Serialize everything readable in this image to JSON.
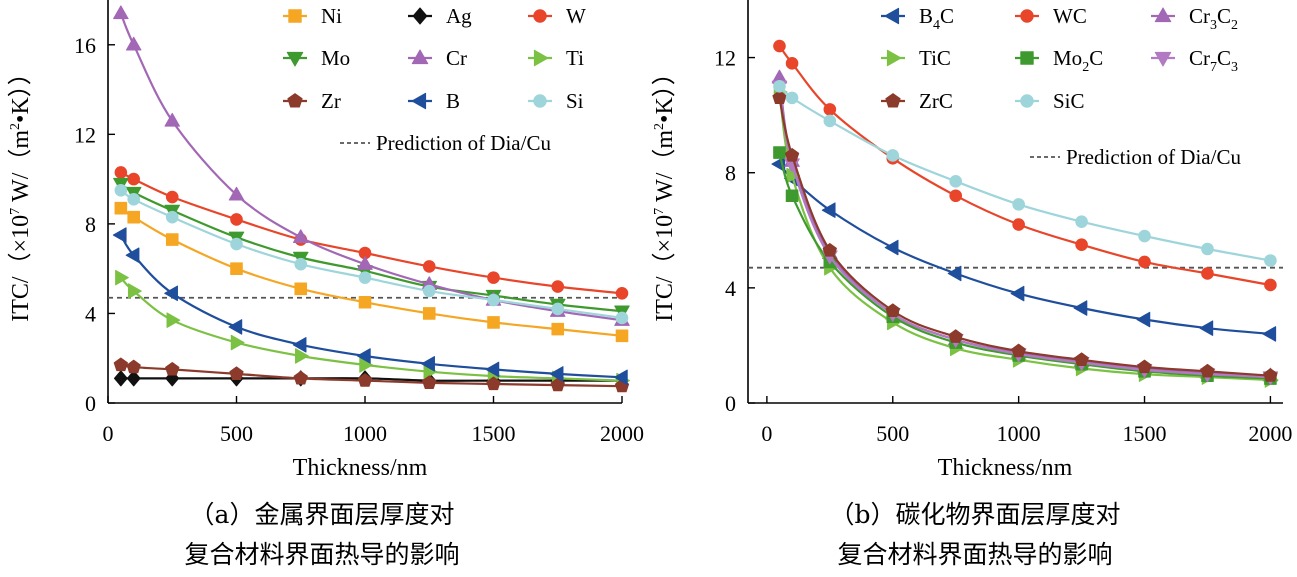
{
  "chart_data": [
    {
      "id": "a",
      "type": "line",
      "xlabel": "Thickness/nm",
      "ylabel_main": "ITC/（×10",
      "ylabel_exp": "7",
      "ylabel_rest": " W/（m",
      "ylabel_sq": "2",
      "ylabel_end": "•K））",
      "xlim": [
        0,
        2000
      ],
      "ylim": [
        0,
        18
      ],
      "xticks": [
        "0",
        "500",
        "1000",
        "1500",
        "2000"
      ],
      "yticks": [
        "0",
        "4",
        "8",
        "12",
        "16"
      ],
      "caption_line1": "（a）金属界面层厚度对",
      "caption_line2": "复合材料界面热导的影响",
      "reference": {
        "label": "Prediction of Dia/Cu",
        "y": 4.7
      },
      "x": [
        50,
        100,
        250,
        500,
        750,
        1000,
        1250,
        1500,
        1750,
        2000
      ],
      "series": [
        {
          "name": "Ni",
          "color": "#F5A623",
          "marker": "square",
          "values": [
            8.7,
            8.3,
            7.3,
            6.0,
            5.1,
            4.5,
            4.0,
            3.6,
            3.3,
            3.0
          ]
        },
        {
          "name": "Ag",
          "color": "#111111",
          "marker": "diamond",
          "values": [
            1.1,
            1.1,
            1.1,
            1.1,
            1.1,
            1.1,
            1.0,
            1.0,
            1.0,
            1.0
          ]
        },
        {
          "name": "W",
          "color": "#E8452A",
          "marker": "circle",
          "values": [
            10.3,
            10.0,
            9.2,
            8.2,
            7.3,
            6.7,
            6.1,
            5.6,
            5.2,
            4.9
          ]
        },
        {
          "name": "Mo",
          "color": "#3E9A2E",
          "marker": "tri-down",
          "values": [
            9.8,
            9.4,
            8.6,
            7.4,
            6.5,
            5.9,
            5.2,
            4.8,
            4.4,
            4.1
          ]
        },
        {
          "name": "Cr",
          "color": "#A267B5",
          "marker": "tri-up",
          "values": [
            17.4,
            16.0,
            12.6,
            9.3,
            7.4,
            6.2,
            5.3,
            4.6,
            4.1,
            3.7
          ]
        },
        {
          "name": "Ti",
          "color": "#7BC143",
          "marker": "tri-right",
          "values": [
            5.6,
            5.0,
            3.7,
            2.7,
            2.1,
            1.7,
            1.4,
            1.2,
            1.1,
            1.0
          ]
        },
        {
          "name": "Zr",
          "color": "#8B3A2B",
          "marker": "pentagon",
          "values": [
            1.7,
            1.6,
            1.5,
            1.3,
            1.1,
            1.0,
            0.9,
            0.85,
            0.8,
            0.75
          ]
        },
        {
          "name": "B",
          "color": "#1F4E9C",
          "marker": "tri-left",
          "values": [
            7.5,
            6.6,
            4.9,
            3.4,
            2.6,
            2.1,
            1.75,
            1.5,
            1.3,
            1.15
          ]
        },
        {
          "name": "Si",
          "color": "#9ED5DB",
          "marker": "circle",
          "values": [
            9.5,
            9.1,
            8.3,
            7.1,
            6.2,
            5.6,
            5.0,
            4.6,
            4.2,
            3.8
          ]
        }
      ]
    },
    {
      "id": "b",
      "type": "line",
      "xlabel": "Thickness/nm",
      "ylabel_main": "ITC/（×10",
      "ylabel_exp": "7",
      "ylabel_rest": " W/（m",
      "ylabel_sq": "2",
      "ylabel_end": "•K））",
      "xlim": [
        -75,
        2050
      ],
      "ylim": [
        0,
        14
      ],
      "xticks": [
        "0",
        "500",
        "1000",
        "1500",
        "2000"
      ],
      "yticks": [
        "0",
        "4",
        "8",
        "12"
      ],
      "caption_line1": "（b）碳化物界面层厚度对",
      "caption_line2": "复合材料界面热导的影响",
      "reference": {
        "label": "Prediction of Dia/Cu",
        "y": 4.7
      },
      "x": [
        50,
        100,
        250,
        500,
        750,
        1000,
        1250,
        1500,
        1750,
        2000
      ],
      "series": [
        {
          "name": "B",
          "sub": "4",
          "tail": "C",
          "color": "#1F4E9C",
          "marker": "tri-left",
          "values": [
            8.3,
            7.8,
            6.7,
            5.4,
            4.5,
            3.8,
            3.3,
            2.9,
            2.6,
            2.4
          ]
        },
        {
          "name": "WC",
          "sub": "",
          "tail": "",
          "color": "#E8452A",
          "marker": "circle",
          "values": [
            12.4,
            11.8,
            10.2,
            8.5,
            7.2,
            6.2,
            5.5,
            4.9,
            4.5,
            4.1
          ]
        },
        {
          "name": "Cr",
          "sub": "3",
          "tail": "C",
          "sub2": "2",
          "color": "#A267B5",
          "marker": "tri-up",
          "values": [
            11.3,
            8.4,
            5.2,
            3.1,
            2.2,
            1.75,
            1.45,
            1.2,
            1.05,
            0.95
          ]
        },
        {
          "name": "TiC",
          "sub": "",
          "tail": "",
          "color": "#7BC143",
          "marker": "tri-right",
          "values": [
            10.8,
            7.9,
            4.7,
            2.8,
            1.9,
            1.5,
            1.2,
            1.0,
            0.9,
            0.8
          ]
        },
        {
          "name": "Mo",
          "sub": "2",
          "tail": "C",
          "color": "#3E9A2E",
          "marker": "square",
          "values": [
            8.7,
            7.2,
            4.9,
            3.0,
            2.1,
            1.65,
            1.35,
            1.1,
            0.95,
            0.85
          ]
        },
        {
          "name": "Cr",
          "sub": "7",
          "tail": "C",
          "sub2": "3",
          "color": "#B27AC2",
          "marker": "tri-down",
          "values": [
            11.0,
            8.3,
            5.1,
            3.1,
            2.2,
            1.7,
            1.4,
            1.15,
            1.0,
            0.9
          ]
        },
        {
          "name": "ZrC",
          "sub": "",
          "tail": "",
          "color": "#8B3A2B",
          "marker": "pentagon",
          "values": [
            10.6,
            8.6,
            5.3,
            3.2,
            2.3,
            1.8,
            1.5,
            1.25,
            1.1,
            0.95
          ]
        },
        {
          "name": "SiC",
          "sub": "",
          "tail": "",
          "color": "#9ED5DB",
          "marker": "circle",
          "values": [
            11.0,
            10.6,
            9.8,
            8.6,
            7.7,
            6.9,
            6.3,
            5.8,
            5.35,
            4.95
          ]
        }
      ]
    }
  ]
}
